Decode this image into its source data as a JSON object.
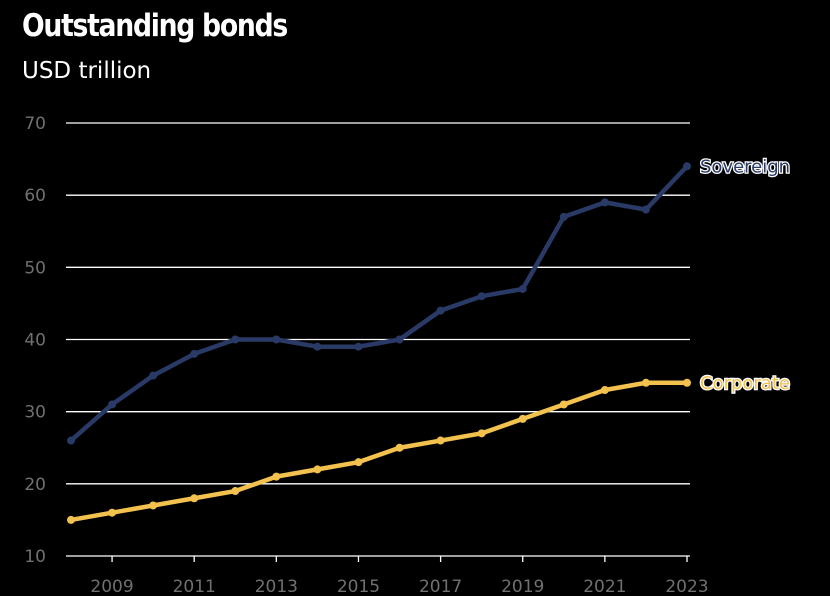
{
  "title": "Outstanding bonds",
  "subtitle": "USD trillion",
  "chart_data": {
    "type": "line",
    "title": "Outstanding bonds",
    "subtitle": "USD trillion",
    "xlabel": "",
    "ylabel": "",
    "x": [
      2008,
      2009,
      2010,
      2011,
      2012,
      2013,
      2014,
      2015,
      2016,
      2017,
      2018,
      2019,
      2020,
      2021,
      2022,
      2023
    ],
    "x_ticks": [
      "2009",
      "2011",
      "2013",
      "2015",
      "2017",
      "2019",
      "2021",
      "2023"
    ],
    "y_ticks": [
      "10",
      "20",
      "30",
      "40",
      "50",
      "60",
      "70"
    ],
    "ylim": [
      10,
      70
    ],
    "grid": true,
    "legend": "direct labels at line ends",
    "series": [
      {
        "name": "Sovereign",
        "color": "#2a3a66",
        "values": [
          26,
          31,
          35,
          38,
          40,
          40,
          39,
          39,
          40,
          44,
          46,
          47,
          57,
          59,
          58,
          64
        ]
      },
      {
        "name": "Corporate",
        "color": "#f2c14e",
        "values": [
          15,
          16,
          17,
          18,
          19,
          21,
          22,
          23,
          25,
          26,
          27,
          29,
          31,
          33,
          34,
          34
        ]
      }
    ]
  }
}
